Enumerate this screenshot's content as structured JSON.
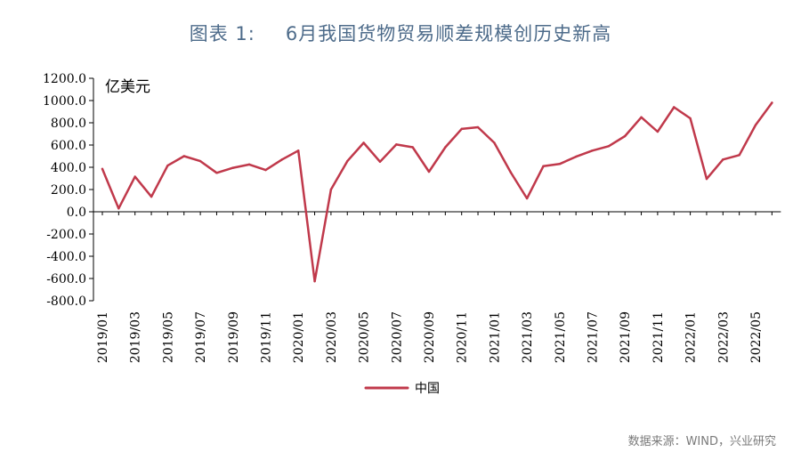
{
  "title": {
    "label": "图表 1:",
    "text": "6月我国货物贸易顺差规模创历史新高"
  },
  "source": "数据来源：WIND，兴业研究",
  "colors": {
    "series": "#c0394b",
    "title": "#4d6b8a",
    "axis": "#000000",
    "source": "#7a7a7a"
  },
  "chart_data": {
    "type": "line",
    "unit_label": "亿美元",
    "ylim": [
      -800,
      1200
    ],
    "yticks": [
      -800,
      -600,
      -400,
      -200,
      0,
      200,
      400,
      600,
      800,
      1000,
      1200
    ],
    "ytick_labels": [
      "-800.0",
      "-600.0",
      "-400.0",
      "-200.0",
      "0.0",
      "200.0",
      "400.0",
      "600.0",
      "800.0",
      "1000.0",
      "1200.0"
    ],
    "x": [
      "2019/01",
      "2019/02",
      "2019/03",
      "2019/04",
      "2019/05",
      "2019/06",
      "2019/07",
      "2019/08",
      "2019/09",
      "2019/10",
      "2019/11",
      "2019/12",
      "2020/01",
      "2020/02",
      "2020/03",
      "2020/04",
      "2020/05",
      "2020/06",
      "2020/07",
      "2020/08",
      "2020/09",
      "2020/10",
      "2020/11",
      "2020/12",
      "2021/01",
      "2021/02",
      "2021/03",
      "2021/04",
      "2021/05",
      "2021/06",
      "2021/07",
      "2021/08",
      "2021/09",
      "2021/10",
      "2021/11",
      "2021/12",
      "2022/01",
      "2022/02",
      "2022/03",
      "2022/04",
      "2022/05",
      "2022/06"
    ],
    "xtick_labels": [
      "2019/01",
      "2019/03",
      "2019/05",
      "2019/07",
      "2019/09",
      "2019/11",
      "2020/01",
      "2020/03",
      "2020/05",
      "2020/07",
      "2020/09",
      "2020/11",
      "2021/01",
      "2021/03",
      "2021/05",
      "2021/07",
      "2021/09",
      "2021/11",
      "2022/01",
      "2022/03",
      "2022/05"
    ],
    "series": [
      {
        "name": "中国",
        "values": [
          385,
          30,
          315,
          135,
          415,
          500,
          455,
          350,
          395,
          425,
          375,
          470,
          550,
          -625,
          200,
          455,
          620,
          450,
          605,
          580,
          360,
          580,
          745,
          760,
          620,
          355,
          120,
          410,
          430,
          495,
          550,
          590,
          680,
          850,
          720,
          940,
          840,
          295,
          470,
          510,
          780,
          980
        ]
      }
    ],
    "legend_position": "bottom-center",
    "grid": false
  }
}
